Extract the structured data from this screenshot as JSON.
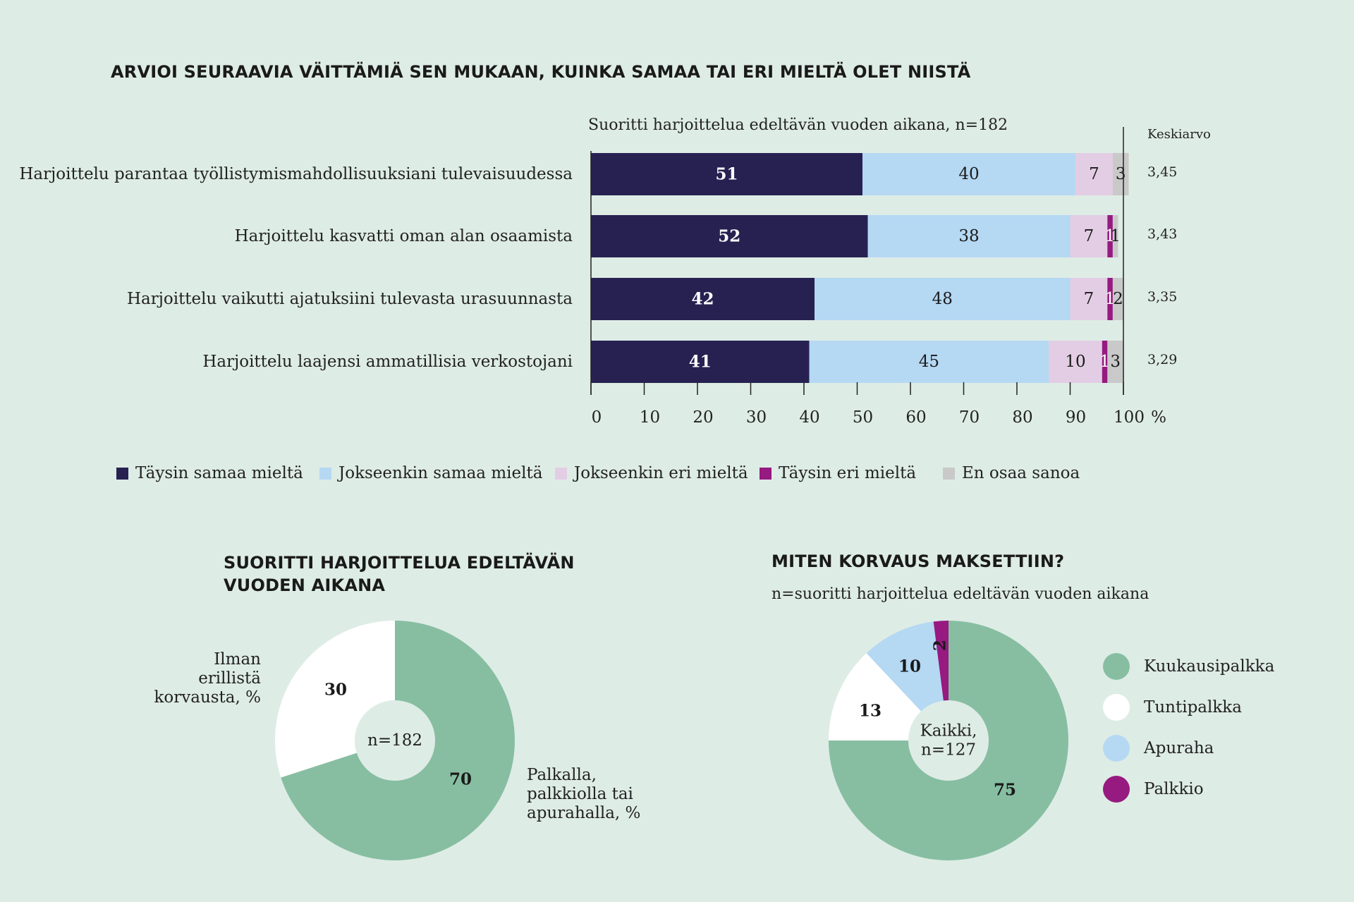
{
  "main_title": "ARVIOI SEURAAVIA VÄITTÄMIÄ SEN MUKAAN, KUINKA SAMAA TAI ERI MIELTÄ OLET NIISTÄ",
  "bar_subtitle": "Suoritti harjoittelua edeltävän vuoden aikana, n=182",
  "mean_header": "Keskiarvo",
  "axis_unit": "%",
  "colors": {
    "tays_samaa": "#272152",
    "jokseenkin_samaa": "#b5d8f3",
    "jokseenkin_eri": "#e3cde4",
    "tays_eri": "#961a80",
    "en_osaa": "#c9c9c9",
    "kuukausi": "#87bea2",
    "tunti": "#ffffff",
    "apuraha": "#b5d8f3",
    "palkkio": "#961a80",
    "background": "#deece6"
  },
  "legend": [
    {
      "label": "Täysin samaa mieltä",
      "color": "#272152"
    },
    {
      "label": "Jokseenkin samaa mieltä",
      "color": "#b5d8f3"
    },
    {
      "label": "Jokseenkin eri mieltä",
      "color": "#e3cde4"
    },
    {
      "label": "Täysin eri mieltä",
      "color": "#961a80"
    },
    {
      "label": "En osaa sanoa",
      "color": "#c9c9c9"
    }
  ],
  "pie1": {
    "title_line1": "SUORITTI HARJOITTELUA EDELTÄVÄN",
    "title_line2": "VUODEN AIKANA",
    "center": "n=182",
    "label_left_1": "Ilman",
    "label_left_2": "erillistä",
    "label_left_3": "korvausta, %",
    "label_right_1": "Palkalla,",
    "label_right_2": "palkkiolla tai",
    "label_right_3": "apurahalla, %"
  },
  "pie2": {
    "title": "MITEN KORVAUS MAKSETTIIN?",
    "subtitle": "n=suoritti harjoittelua edeltävän vuoden aikana",
    "center_1": "Kaikki,",
    "center_2": "n=127",
    "legend": [
      {
        "label": "Kuukausipalkka",
        "color": "#87bea2"
      },
      {
        "label": "Tuntipalkka",
        "color": "#ffffff"
      },
      {
        "label": "Apuraha",
        "color": "#b5d8f3"
      },
      {
        "label": "Palkkio",
        "color": "#961a80"
      }
    ]
  },
  "chart_data": [
    {
      "type": "bar",
      "orientation": "horizontal",
      "stacked": true,
      "title": "ARVIOI SEURAAVIA VÄITTÄMIÄ SEN MUKAAN, KUINKA SAMAA TAI ERI MIELTÄ OLET NIISTÄ",
      "subtitle": "Suoritti harjoittelua edeltävän vuoden aikana, n=182",
      "xlim": [
        0,
        100
      ],
      "xticks": [
        0,
        10,
        20,
        30,
        40,
        50,
        60,
        70,
        80,
        90,
        100
      ],
      "xunit": "%",
      "categories": [
        "Harjoittelu parantaa työllistymismahdollisuuksiani tulevaisuudessa",
        "Harjoittelu kasvatti oman alan osaamista",
        "Harjoittelu vaikutti ajatuksiini tulevasta urasuunnasta",
        "Harjoittelu laajensi ammatillisia verkostojani"
      ],
      "series": [
        {
          "name": "Täysin samaa mieltä",
          "values": [
            51,
            52,
            42,
            41
          ],
          "labels": [
            "51",
            "52",
            "42",
            "41"
          ]
        },
        {
          "name": "Jokseenkin samaa mieltä",
          "values": [
            40,
            38,
            48,
            45
          ],
          "labels": [
            "40",
            "38",
            "48",
            "45"
          ]
        },
        {
          "name": "Jokseenkin eri mieltä",
          "values": [
            7,
            7,
            7,
            10
          ],
          "labels": [
            "7",
            "7",
            "7",
            "10"
          ]
        },
        {
          "name": "Täysin eri mieltä",
          "values": [
            0,
            1,
            1,
            1
          ],
          "labels": [
            "",
            "1",
            "1",
            "1"
          ]
        },
        {
          "name": "En osaa sanoa",
          "values": [
            3,
            1,
            2,
            3
          ],
          "labels": [
            "3",
            "1",
            "2",
            "3"
          ]
        }
      ],
      "means": [
        "3,45",
        "3,43",
        "3,35",
        "3,29"
      ],
      "legend_position": "bottom"
    },
    {
      "type": "pie",
      "donut": true,
      "title": "SUORITTI HARJOITTELUA EDELTÄVÄN VUODEN AIKANA",
      "center_label": "n=182",
      "slices": [
        {
          "name": "Palkalla, palkkiolla tai apurahalla, %",
          "value": 70,
          "color": "#87bea2"
        },
        {
          "name": "Ilman erillistä korvausta, %",
          "value": 30,
          "color": "#ffffff"
        }
      ]
    },
    {
      "type": "pie",
      "donut": true,
      "title": "MITEN KORVAUS MAKSETTIIN?",
      "subtitle": "n=suoritti harjoittelua edeltävän vuoden aikana",
      "center_label": "Kaikki, n=127",
      "slices": [
        {
          "name": "Kuukausipalkka",
          "value": 75,
          "color": "#87bea2"
        },
        {
          "name": "Tuntipalkka",
          "value": 13,
          "color": "#ffffff"
        },
        {
          "name": "Apuraha",
          "value": 10,
          "color": "#b5d8f3"
        },
        {
          "name": "Palkkio",
          "value": 2,
          "color": "#961a80"
        }
      ],
      "legend_position": "right"
    }
  ]
}
